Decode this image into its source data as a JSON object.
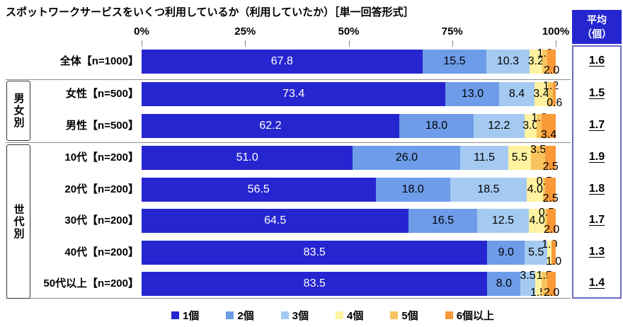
{
  "title": "スポットワークサービスをいくつ利用しているか（利用していたか）［単一回答形式］",
  "avg_header": {
    "line1": "平均",
    "line2": "（個）"
  },
  "colors": {
    "s1": "#2626d1",
    "s2": "#6e9ce8",
    "s3": "#a5caf2",
    "s4": "#fff2a0",
    "s5": "#f9c45d",
    "s6": "#f89a38",
    "header_bg": "#2626d1",
    "avg_box_border": "#6a6ac8"
  },
  "chart_data": {
    "type": "bar",
    "stacked": true,
    "orientation": "horizontal",
    "unit": "%",
    "xlim": [
      0,
      100
    ],
    "axis_ticks": [
      "0%",
      "25%",
      "50%",
      "75%",
      "100%"
    ],
    "categories": [
      "全体【n=1000】",
      "女性【n=500】",
      "男性【n=500】",
      "10代【n=200】",
      "20代【n=200】",
      "30代【n=200】",
      "40代【n=200】",
      "50代以上【n=200】"
    ],
    "series": [
      {
        "name": "1個",
        "color": "#2626d1",
        "values": [
          67.8,
          73.4,
          62.2,
          51.0,
          56.5,
          64.5,
          83.5,
          83.5
        ]
      },
      {
        "name": "2個",
        "color": "#6e9ce8",
        "values": [
          15.5,
          13.0,
          18.0,
          26.0,
          18.0,
          16.5,
          9.0,
          8.0
        ]
      },
      {
        "name": "3個",
        "color": "#a5caf2",
        "values": [
          10.3,
          8.4,
          12.2,
          11.5,
          18.5,
          12.5,
          5.5,
          3.5
        ]
      },
      {
        "name": "4個",
        "color": "#fff2a0",
        "values": [
          3.2,
          3.4,
          3.0,
          5.5,
          4.0,
          4.0,
          1.0,
          1.5
        ]
      },
      {
        "name": "5個",
        "color": "#f9c45d",
        "values": [
          1.2,
          1.2,
          1.2,
          3.5,
          0.5,
          0.5,
          0.0,
          1.5
        ]
      },
      {
        "name": "6個以上",
        "color": "#f89a38",
        "values": [
          2.0,
          0.6,
          3.4,
          2.5,
          2.5,
          2.0,
          1.0,
          2.0
        ]
      }
    ],
    "averages": [
      1.6,
      1.5,
      1.7,
      1.9,
      1.8,
      1.7,
      1.3,
      1.4
    ],
    "avg_column_header": "平均（個）",
    "label_pos": [
      [
        "in",
        "in",
        "in",
        "in",
        "top",
        "bottom"
      ],
      [
        "in",
        "in",
        "in",
        "in",
        "top",
        "bottom"
      ],
      [
        "in",
        "in",
        "in",
        "in",
        "top",
        "bottom"
      ],
      [
        "in",
        "in",
        "in",
        "in",
        "top",
        "bottom"
      ],
      [
        "in",
        "in",
        "in",
        "in",
        "top",
        "bottom"
      ],
      [
        "in",
        "in",
        "in",
        "in",
        "top",
        "bottom"
      ],
      [
        "in",
        "in",
        "in",
        "top",
        "none",
        "bottom"
      ],
      [
        "in",
        "in",
        "top",
        "bottom",
        "top",
        "bottom"
      ]
    ],
    "row_groups": [
      {
        "label": "男女別",
        "start": 1,
        "end": 2
      },
      {
        "label": "世代別",
        "start": 3,
        "end": 7
      }
    ],
    "legend_position": "bottom"
  }
}
